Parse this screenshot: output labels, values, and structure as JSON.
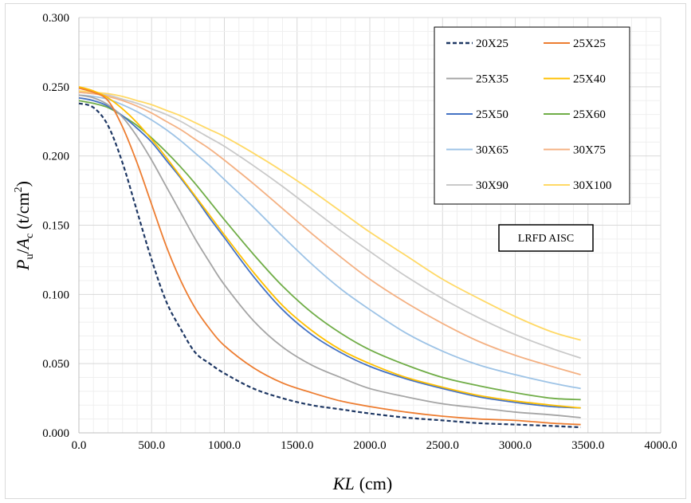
{
  "chart_data": {
    "type": "line",
    "xlabel": "KL (cm)",
    "xlabel_italic": "KL",
    "xlabel_unit": "(cm)",
    "ylabel": "Pu/Ac (t/cm2)",
    "ylabel_parts": {
      "P": "P",
      "u": "u",
      "slash": "/",
      "A": "A",
      "c": "c",
      "unit": "(t/cm",
      "exp": "2",
      "close": ")"
    },
    "xlim": [
      0,
      4000
    ],
    "ylim": [
      0,
      0.3
    ],
    "x_ticks": [
      "0.0",
      "500.0",
      "1000.0",
      "1500.0",
      "2000.0",
      "2500.0",
      "3000.0",
      "3500.0",
      "4000.0"
    ],
    "y_ticks": [
      "0.000",
      "0.050",
      "0.100",
      "0.150",
      "0.200",
      "0.250",
      "0.300"
    ],
    "grid": true,
    "legend_position": "top-right",
    "annotation": "LRFD AISC",
    "x": [
      0,
      100,
      200,
      300,
      400,
      500,
      600,
      700,
      800,
      900,
      1000,
      1200,
      1400,
      1600,
      1800,
      2000,
      2250,
      2500,
      2750,
      3000,
      3250,
      3450
    ],
    "series": [
      {
        "name": "20X25",
        "color": "#1f3864",
        "dash": true,
        "values": [
          0.238,
          0.235,
          0.222,
          0.195,
          0.16,
          0.125,
          0.095,
          0.075,
          0.058,
          0.05,
          0.043,
          0.032,
          0.025,
          0.02,
          0.017,
          0.014,
          0.011,
          0.009,
          0.007,
          0.006,
          0.005,
          0.004
        ]
      },
      {
        "name": "25X25",
        "color": "#ed7d31",
        "values": [
          0.249,
          0.246,
          0.24,
          0.221,
          0.195,
          0.165,
          0.135,
          0.11,
          0.09,
          0.075,
          0.063,
          0.047,
          0.036,
          0.029,
          0.023,
          0.019,
          0.015,
          0.012,
          0.01,
          0.009,
          0.007,
          0.006
        ]
      },
      {
        "name": "25X35",
        "color": "#a5a5a5",
        "values": [
          0.244,
          0.242,
          0.237,
          0.228,
          0.214,
          0.197,
          0.178,
          0.159,
          0.14,
          0.123,
          0.107,
          0.081,
          0.062,
          0.049,
          0.04,
          0.032,
          0.026,
          0.021,
          0.018,
          0.015,
          0.013,
          0.011
        ]
      },
      {
        "name": "25X40",
        "color": "#ffc000",
        "values": [
          0.25,
          0.247,
          0.242,
          0.234,
          0.224,
          0.212,
          0.199,
          0.185,
          0.171,
          0.157,
          0.143,
          0.116,
          0.092,
          0.074,
          0.06,
          0.05,
          0.04,
          0.033,
          0.027,
          0.023,
          0.02,
          0.018
        ]
      },
      {
        "name": "25X50",
        "color": "#4472c4",
        "values": [
          0.242,
          0.24,
          0.236,
          0.229,
          0.22,
          0.21,
          0.197,
          0.184,
          0.17,
          0.155,
          0.141,
          0.113,
          0.089,
          0.071,
          0.058,
          0.048,
          0.039,
          0.032,
          0.026,
          0.022,
          0.019,
          0.018
        ]
      },
      {
        "name": "25X60",
        "color": "#70ad47",
        "values": [
          0.24,
          0.238,
          0.235,
          0.229,
          0.222,
          0.213,
          0.203,
          0.192,
          0.18,
          0.167,
          0.154,
          0.129,
          0.106,
          0.087,
          0.072,
          0.06,
          0.049,
          0.04,
          0.034,
          0.029,
          0.025,
          0.024
        ]
      },
      {
        "name": "30X65",
        "color": "#9dc3e6",
        "values": [
          0.244,
          0.243,
          0.241,
          0.237,
          0.232,
          0.226,
          0.219,
          0.211,
          0.202,
          0.193,
          0.183,
          0.163,
          0.142,
          0.122,
          0.104,
          0.089,
          0.072,
          0.059,
          0.049,
          0.042,
          0.036,
          0.032
        ]
      },
      {
        "name": "30X75",
        "color": "#f4b183",
        "values": [
          0.246,
          0.245,
          0.243,
          0.24,
          0.236,
          0.231,
          0.225,
          0.219,
          0.212,
          0.205,
          0.197,
          0.18,
          0.162,
          0.144,
          0.127,
          0.111,
          0.094,
          0.079,
          0.066,
          0.056,
          0.048,
          0.042
        ]
      },
      {
        "name": "30X90",
        "color": "#c9c9c9",
        "values": [
          0.246,
          0.245,
          0.244,
          0.241,
          0.238,
          0.234,
          0.23,
          0.225,
          0.219,
          0.213,
          0.207,
          0.193,
          0.178,
          0.162,
          0.146,
          0.131,
          0.113,
          0.097,
          0.083,
          0.071,
          0.061,
          0.054
        ]
      },
      {
        "name": "30X100",
        "color": "#ffd966",
        "values": [
          0.247,
          0.246,
          0.245,
          0.243,
          0.24,
          0.237,
          0.233,
          0.229,
          0.224,
          0.219,
          0.214,
          0.202,
          0.189,
          0.175,
          0.16,
          0.145,
          0.128,
          0.111,
          0.097,
          0.084,
          0.073,
          0.067
        ]
      }
    ]
  }
}
